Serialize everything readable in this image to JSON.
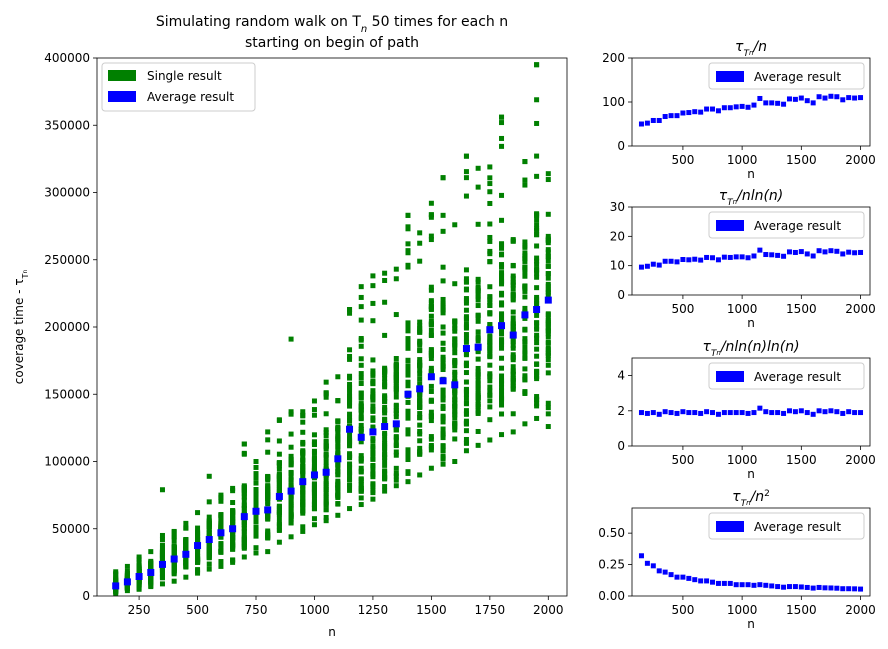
{
  "chart_data": [
    {
      "id": "main",
      "type": "scatter",
      "title_line1": "Simulating random walk on T",
      "title_sub": "n",
      "title_line1_tail": " 50 times for each n",
      "title_line2": "starting on begin of path",
      "xlabel": "n",
      "ylabel": "coverage time - τ",
      "ylabel_sub": "T",
      "ylabel_subsub": "n",
      "xlim": [
        70,
        2080
      ],
      "ylim": [
        0,
        400000
      ],
      "xticks": [
        250,
        500,
        750,
        1000,
        1250,
        1500,
        1750,
        2000
      ],
      "yticks": [
        0,
        50000,
        100000,
        150000,
        200000,
        250000,
        300000,
        350000,
        400000
      ],
      "legend": [
        {
          "label": "Single result",
          "color": "#008000"
        },
        {
          "label": "Average result",
          "color": "#0000ff"
        }
      ],
      "legend_position": "top-left",
      "n_values": [
        150,
        200,
        250,
        300,
        350,
        400,
        450,
        500,
        550,
        600,
        650,
        700,
        750,
        800,
        850,
        900,
        950,
        1000,
        1050,
        1100,
        1150,
        1200,
        1250,
        1300,
        1350,
        1400,
        1450,
        1500,
        1550,
        1600,
        1650,
        1700,
        1750,
        1800,
        1850,
        1900,
        1950,
        2000
      ],
      "average": [
        7500,
        10500,
        14500,
        17500,
        23500,
        27500,
        31000,
        37500,
        42000,
        47000,
        50000,
        59000,
        63000,
        64000,
        74000,
        78000,
        85000,
        90000,
        92000,
        102000,
        124000,
        118000,
        122000,
        126000,
        128000,
        150000,
        154000,
        163000,
        160000,
        157000,
        184000,
        185000,
        198000,
        201000,
        194000,
        209000,
        213000,
        220000
      ],
      "single_min": [
        2000,
        4000,
        5000,
        7000,
        9000,
        11000,
        14000,
        17000,
        20000,
        22000,
        25000,
        29000,
        32000,
        33000,
        40000,
        44000,
        48000,
        53000,
        56000,
        60000,
        65000,
        68000,
        72000,
        78000,
        82000,
        85000,
        90000,
        95000,
        98000,
        100000,
        108000,
        112000,
        116000,
        120000,
        122000,
        128000,
        132000,
        126000
      ],
      "single_max": [
        18000,
        22000,
        29000,
        33000,
        45000,
        48000,
        54000,
        62000,
        70000,
        75000,
        80000,
        113000,
        100000,
        122000,
        131000,
        137000,
        137000,
        145000,
        159000,
        163000,
        213000,
        230000,
        238000,
        240000,
        243000,
        283000,
        270000,
        292000,
        311000,
        276000,
        327000,
        304000,
        319000,
        356000,
        264000,
        323000,
        395000,
        314000
      ],
      "single_outliers": [
        [
          350,
          79000
        ],
        [
          550,
          89000
        ],
        [
          700,
          113000
        ],
        [
          900,
          191000
        ],
        [
          1150,
          213000
        ],
        [
          1400,
          283000
        ],
        [
          1550,
          311000
        ],
        [
          1650,
          327000
        ],
        [
          1700,
          318000
        ],
        [
          1800,
          356000
        ],
        [
          1800,
          352000
        ],
        [
          1900,
          323000
        ],
        [
          1950,
          395000
        ],
        [
          1950,
          312000
        ],
        [
          1850,
          265000
        ]
      ]
    },
    {
      "id": "ratio_n",
      "type": "scatter",
      "title": "τ",
      "title_sub": "T",
      "title_subsub": "n",
      "title_tail": "/n",
      "xlabel": "n",
      "xlim": [
        70,
        2080
      ],
      "ylim": [
        0,
        200
      ],
      "xticks": [
        500,
        1000,
        1500,
        2000
      ],
      "yticks": [
        0,
        100,
        200
      ],
      "legend": [
        {
          "label": "Average result",
          "color": "#0000ff"
        }
      ],
      "legend_position": "top-right",
      "values": [
        50,
        52,
        58,
        58,
        67,
        69,
        69,
        75,
        76,
        78,
        77,
        84,
        84,
        80,
        87,
        87,
        89,
        90,
        88,
        93,
        108,
        98,
        98,
        97,
        95,
        107,
        106,
        109,
        103,
        98,
        112,
        109,
        113,
        112,
        105,
        110,
        109,
        110
      ]
    },
    {
      "id": "ratio_nlogn",
      "type": "scatter",
      "title": "τ",
      "title_sub": "T",
      "title_subsub": "n",
      "title_tail": "/nln(n)",
      "xlabel": "n",
      "xlim": [
        70,
        2080
      ],
      "ylim": [
        0,
        30
      ],
      "xticks": [
        500,
        1000,
        1500,
        2000
      ],
      "yticks": [
        0,
        10,
        20,
        30
      ],
      "legend": [
        {
          "label": "Average result",
          "color": "#0000ff"
        }
      ],
      "legend_position": "top-right",
      "values": [
        9.5,
        9.8,
        10.5,
        10.2,
        11.5,
        11.5,
        11.3,
        12.1,
        12.0,
        12.2,
        11.9,
        12.8,
        12.7,
        12.0,
        12.9,
        12.8,
        13.0,
        13.0,
        12.7,
        13.3,
        15.3,
        13.8,
        13.7,
        13.5,
        13.2,
        14.7,
        14.5,
        14.8,
        14.0,
        13.3,
        15.1,
        14.7,
        15.1,
        14.9,
        14.0,
        14.6,
        14.4,
        14.5
      ]
    },
    {
      "id": "ratio_nlog2n",
      "type": "scatter",
      "title": "τ",
      "title_sub": "T",
      "title_subsub": "n",
      "title_tail": "/nln(n)ln(n)",
      "xlabel": "n",
      "xlim": [
        70,
        2080
      ],
      "ylim": [
        0,
        5
      ],
      "xticks": [
        500,
        1000,
        1500,
        2000
      ],
      "yticks": [
        0,
        2,
        4
      ],
      "legend": [
        {
          "label": "Average result",
          "color": "#0000ff"
        }
      ],
      "legend_position": "top-right",
      "values": [
        1.9,
        1.85,
        1.9,
        1.8,
        1.95,
        1.9,
        1.85,
        1.95,
        1.9,
        1.9,
        1.85,
        1.95,
        1.9,
        1.8,
        1.9,
        1.9,
        1.9,
        1.9,
        1.85,
        1.9,
        2.15,
        1.95,
        1.9,
        1.9,
        1.85,
        2.0,
        1.95,
        2.0,
        1.9,
        1.8,
        2.0,
        1.95,
        2.0,
        1.95,
        1.85,
        1.95,
        1.9,
        1.9
      ]
    },
    {
      "id": "ratio_n2",
      "type": "scatter",
      "title": "τ",
      "title_sub": "T",
      "title_subsub": "n",
      "title_tail": "/n",
      "title_sup": "2",
      "xlabel": "n",
      "xlim": [
        70,
        2080
      ],
      "ylim": [
        0,
        0.7
      ],
      "xticks": [
        500,
        1000,
        1500,
        2000
      ],
      "yticks": [
        0.0,
        0.25,
        0.5
      ],
      "ytick_labels": [
        "0.00",
        "0.25",
        "0.50"
      ],
      "legend": [
        {
          "label": "Average result",
          "color": "#0000ff"
        }
      ],
      "legend_position": "top-right",
      "values": [
        0.32,
        0.26,
        0.24,
        0.2,
        0.19,
        0.17,
        0.15,
        0.15,
        0.14,
        0.13,
        0.12,
        0.12,
        0.11,
        0.1,
        0.1,
        0.1,
        0.09,
        0.09,
        0.09,
        0.085,
        0.09,
        0.085,
        0.08,
        0.075,
        0.07,
        0.075,
        0.075,
        0.072,
        0.068,
        0.063,
        0.068,
        0.065,
        0.064,
        0.062,
        0.058,
        0.058,
        0.057,
        0.055
      ]
    }
  ]
}
